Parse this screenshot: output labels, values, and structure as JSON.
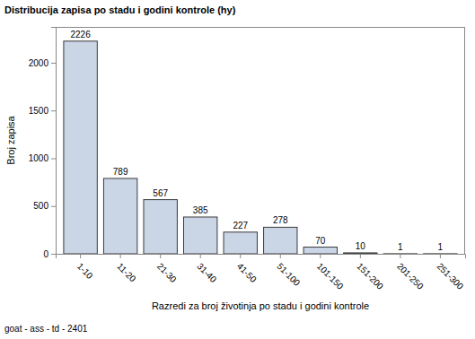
{
  "chart_data": {
    "type": "bar",
    "title": "Distribucija zapisa po stadu i godini kontrole (hy)",
    "x_label": "Razredi za broj životinja po stadu i godini kontrole",
    "y_label": "Broj zapisa",
    "footnote": "goat - ass - td - 2401",
    "categories": [
      "1-10",
      "11-20",
      "21-30",
      "31-40",
      "41-50",
      "51-100",
      "101-150",
      "151-200",
      "201-250",
      "251-300"
    ],
    "values": [
      2226,
      789,
      567,
      385,
      227,
      278,
      70,
      10,
      1,
      1
    ],
    "color": "#cad5e5",
    "ylim": [
      0,
      2375
    ],
    "yticks": [
      0,
      500,
      1000,
      1500,
      2000
    ],
    "grid": false,
    "data_labels": true
  }
}
